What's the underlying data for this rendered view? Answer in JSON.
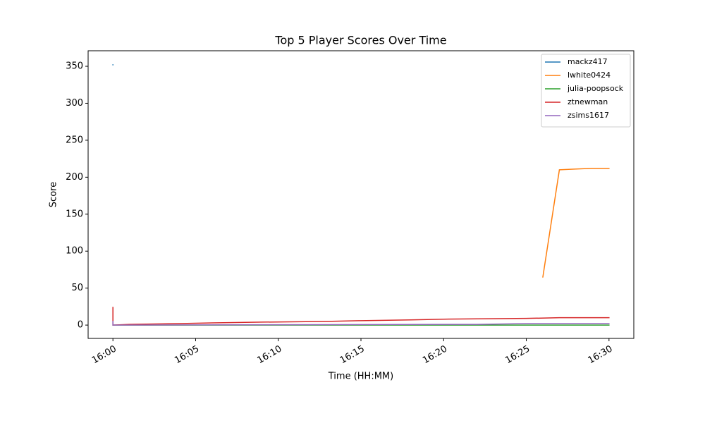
{
  "chart_data": {
    "type": "line",
    "title": "Top 5 Player Scores Over Time",
    "x_label": "Time (HH:MM)",
    "y_label": "Score",
    "xlim": [
      "15:58:30",
      "16:31:30"
    ],
    "ylim": [
      -18,
      371
    ],
    "xticks": [
      "16:00",
      "16:05",
      "16:10",
      "16:15",
      "16:20",
      "16:25",
      "16:30"
    ],
    "yticks": [
      0,
      50,
      100,
      150,
      200,
      250,
      300,
      350
    ],
    "legend": "upper right",
    "grid": false,
    "series": [
      {
        "name": "mackz417",
        "color": "#1f77b4",
        "x": [
          "16:00",
          "16:00"
        ],
        "values": [
          352,
          352
        ]
      },
      {
        "name": "lwhite0424",
        "color": "#ff7f0e",
        "x": [
          "16:26",
          "16:27",
          "16:28",
          "16:29",
          "16:30"
        ],
        "values": [
          65,
          210,
          211,
          212,
          212
        ]
      },
      {
        "name": "julia-poopsock",
        "color": "#2ca02c",
        "x": [
          "16:00",
          "16:30"
        ],
        "values": [
          0,
          0
        ]
      },
      {
        "name": "ztnewman",
        "color": "#d62728",
        "x": [
          "16:00",
          "16:00",
          "16:01",
          "16:04",
          "16:06",
          "16:09",
          "16:13",
          "16:15",
          "16:18",
          "16:20",
          "16:25",
          "16:27",
          "16:30"
        ],
        "values": [
          24,
          0,
          1,
          2,
          3,
          4,
          5,
          6,
          7,
          8,
          9,
          10,
          10
        ]
      },
      {
        "name": "zsims1617",
        "color": "#9467bd",
        "x": [
          "16:00",
          "16:00",
          "16:22",
          "16:25",
          "16:30"
        ],
        "values": [
          5,
          0,
          1,
          2,
          2
        ]
      }
    ]
  }
}
